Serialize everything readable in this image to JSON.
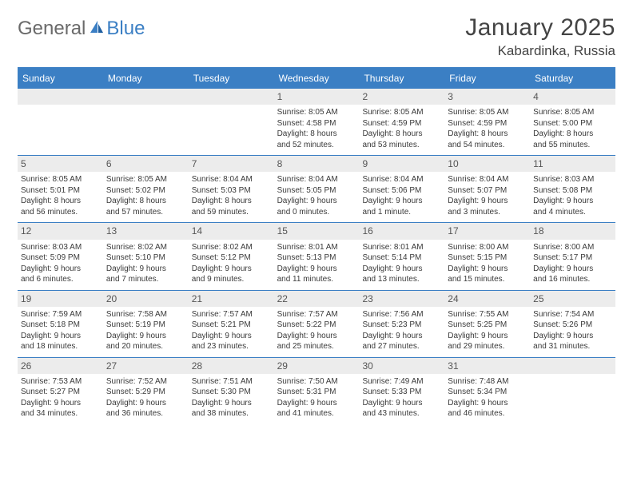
{
  "logo": {
    "text1": "General",
    "text2": "Blue"
  },
  "title": "January 2025",
  "location": "Kabardinka, Russia",
  "colors": {
    "accent": "#3b7fc4",
    "daynum_bg": "#ececec",
    "text": "#3a3a3a",
    "logo_gray": "#6a6a6a"
  },
  "days_of_week": [
    "Sunday",
    "Monday",
    "Tuesday",
    "Wednesday",
    "Thursday",
    "Friday",
    "Saturday"
  ],
  "weeks": [
    [
      {
        "n": "",
        "sr": "",
        "ss": "",
        "dl1": "",
        "dl2": ""
      },
      {
        "n": "",
        "sr": "",
        "ss": "",
        "dl1": "",
        "dl2": ""
      },
      {
        "n": "",
        "sr": "",
        "ss": "",
        "dl1": "",
        "dl2": ""
      },
      {
        "n": "1",
        "sr": "Sunrise: 8:05 AM",
        "ss": "Sunset: 4:58 PM",
        "dl1": "Daylight: 8 hours",
        "dl2": "and 52 minutes."
      },
      {
        "n": "2",
        "sr": "Sunrise: 8:05 AM",
        "ss": "Sunset: 4:59 PM",
        "dl1": "Daylight: 8 hours",
        "dl2": "and 53 minutes."
      },
      {
        "n": "3",
        "sr": "Sunrise: 8:05 AM",
        "ss": "Sunset: 4:59 PM",
        "dl1": "Daylight: 8 hours",
        "dl2": "and 54 minutes."
      },
      {
        "n": "4",
        "sr": "Sunrise: 8:05 AM",
        "ss": "Sunset: 5:00 PM",
        "dl1": "Daylight: 8 hours",
        "dl2": "and 55 minutes."
      }
    ],
    [
      {
        "n": "5",
        "sr": "Sunrise: 8:05 AM",
        "ss": "Sunset: 5:01 PM",
        "dl1": "Daylight: 8 hours",
        "dl2": "and 56 minutes."
      },
      {
        "n": "6",
        "sr": "Sunrise: 8:05 AM",
        "ss": "Sunset: 5:02 PM",
        "dl1": "Daylight: 8 hours",
        "dl2": "and 57 minutes."
      },
      {
        "n": "7",
        "sr": "Sunrise: 8:04 AM",
        "ss": "Sunset: 5:03 PM",
        "dl1": "Daylight: 8 hours",
        "dl2": "and 59 minutes."
      },
      {
        "n": "8",
        "sr": "Sunrise: 8:04 AM",
        "ss": "Sunset: 5:05 PM",
        "dl1": "Daylight: 9 hours",
        "dl2": "and 0 minutes."
      },
      {
        "n": "9",
        "sr": "Sunrise: 8:04 AM",
        "ss": "Sunset: 5:06 PM",
        "dl1": "Daylight: 9 hours",
        "dl2": "and 1 minute."
      },
      {
        "n": "10",
        "sr": "Sunrise: 8:04 AM",
        "ss": "Sunset: 5:07 PM",
        "dl1": "Daylight: 9 hours",
        "dl2": "and 3 minutes."
      },
      {
        "n": "11",
        "sr": "Sunrise: 8:03 AM",
        "ss": "Sunset: 5:08 PM",
        "dl1": "Daylight: 9 hours",
        "dl2": "and 4 minutes."
      }
    ],
    [
      {
        "n": "12",
        "sr": "Sunrise: 8:03 AM",
        "ss": "Sunset: 5:09 PM",
        "dl1": "Daylight: 9 hours",
        "dl2": "and 6 minutes."
      },
      {
        "n": "13",
        "sr": "Sunrise: 8:02 AM",
        "ss": "Sunset: 5:10 PM",
        "dl1": "Daylight: 9 hours",
        "dl2": "and 7 minutes."
      },
      {
        "n": "14",
        "sr": "Sunrise: 8:02 AM",
        "ss": "Sunset: 5:12 PM",
        "dl1": "Daylight: 9 hours",
        "dl2": "and 9 minutes."
      },
      {
        "n": "15",
        "sr": "Sunrise: 8:01 AM",
        "ss": "Sunset: 5:13 PM",
        "dl1": "Daylight: 9 hours",
        "dl2": "and 11 minutes."
      },
      {
        "n": "16",
        "sr": "Sunrise: 8:01 AM",
        "ss": "Sunset: 5:14 PM",
        "dl1": "Daylight: 9 hours",
        "dl2": "and 13 minutes."
      },
      {
        "n": "17",
        "sr": "Sunrise: 8:00 AM",
        "ss": "Sunset: 5:15 PM",
        "dl1": "Daylight: 9 hours",
        "dl2": "and 15 minutes."
      },
      {
        "n": "18",
        "sr": "Sunrise: 8:00 AM",
        "ss": "Sunset: 5:17 PM",
        "dl1": "Daylight: 9 hours",
        "dl2": "and 16 minutes."
      }
    ],
    [
      {
        "n": "19",
        "sr": "Sunrise: 7:59 AM",
        "ss": "Sunset: 5:18 PM",
        "dl1": "Daylight: 9 hours",
        "dl2": "and 18 minutes."
      },
      {
        "n": "20",
        "sr": "Sunrise: 7:58 AM",
        "ss": "Sunset: 5:19 PM",
        "dl1": "Daylight: 9 hours",
        "dl2": "and 20 minutes."
      },
      {
        "n": "21",
        "sr": "Sunrise: 7:57 AM",
        "ss": "Sunset: 5:21 PM",
        "dl1": "Daylight: 9 hours",
        "dl2": "and 23 minutes."
      },
      {
        "n": "22",
        "sr": "Sunrise: 7:57 AM",
        "ss": "Sunset: 5:22 PM",
        "dl1": "Daylight: 9 hours",
        "dl2": "and 25 minutes."
      },
      {
        "n": "23",
        "sr": "Sunrise: 7:56 AM",
        "ss": "Sunset: 5:23 PM",
        "dl1": "Daylight: 9 hours",
        "dl2": "and 27 minutes."
      },
      {
        "n": "24",
        "sr": "Sunrise: 7:55 AM",
        "ss": "Sunset: 5:25 PM",
        "dl1": "Daylight: 9 hours",
        "dl2": "and 29 minutes."
      },
      {
        "n": "25",
        "sr": "Sunrise: 7:54 AM",
        "ss": "Sunset: 5:26 PM",
        "dl1": "Daylight: 9 hours",
        "dl2": "and 31 minutes."
      }
    ],
    [
      {
        "n": "26",
        "sr": "Sunrise: 7:53 AM",
        "ss": "Sunset: 5:27 PM",
        "dl1": "Daylight: 9 hours",
        "dl2": "and 34 minutes."
      },
      {
        "n": "27",
        "sr": "Sunrise: 7:52 AM",
        "ss": "Sunset: 5:29 PM",
        "dl1": "Daylight: 9 hours",
        "dl2": "and 36 minutes."
      },
      {
        "n": "28",
        "sr": "Sunrise: 7:51 AM",
        "ss": "Sunset: 5:30 PM",
        "dl1": "Daylight: 9 hours",
        "dl2": "and 38 minutes."
      },
      {
        "n": "29",
        "sr": "Sunrise: 7:50 AM",
        "ss": "Sunset: 5:31 PM",
        "dl1": "Daylight: 9 hours",
        "dl2": "and 41 minutes."
      },
      {
        "n": "30",
        "sr": "Sunrise: 7:49 AM",
        "ss": "Sunset: 5:33 PM",
        "dl1": "Daylight: 9 hours",
        "dl2": "and 43 minutes."
      },
      {
        "n": "31",
        "sr": "Sunrise: 7:48 AM",
        "ss": "Sunset: 5:34 PM",
        "dl1": "Daylight: 9 hours",
        "dl2": "and 46 minutes."
      },
      {
        "n": "",
        "sr": "",
        "ss": "",
        "dl1": "",
        "dl2": ""
      }
    ]
  ]
}
